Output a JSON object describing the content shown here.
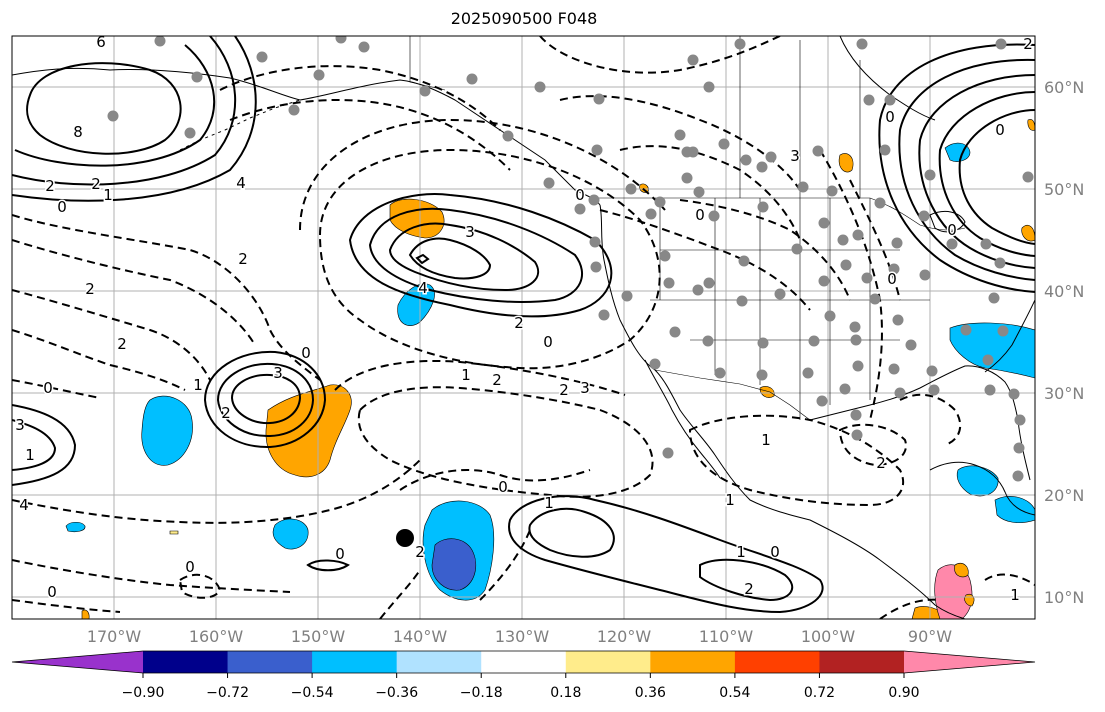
{
  "title": "2025090500 F048",
  "lat_labels": [
    "60°N",
    "50°N",
    "40°N",
    "30°N",
    "20°N",
    "10°N"
  ],
  "lon_labels": [
    "170°W",
    "160°W",
    "150°W",
    "140°W",
    "130°W",
    "120°W",
    "110°W",
    "100°W",
    "90°W"
  ],
  "colorbar": {
    "ticks": [
      "−0.90",
      "−0.72",
      "−0.54",
      "−0.36",
      "−0.18",
      "0.18",
      "0.36",
      "0.54",
      "0.72",
      "0.90"
    ],
    "colors": [
      "#9932cc",
      "#00008b",
      "#3a5fcd",
      "#00bfff",
      "#b0e2ff",
      "#ffffff",
      "#ffec8b",
      "#ffa500",
      "#ff4000",
      "#b22222",
      "#ff88aa"
    ]
  },
  "contour_labels": [
    "6",
    "8",
    "2",
    "2",
    "0",
    "1",
    "3",
    "4",
    "0",
    "2",
    "2",
    "4",
    "3",
    "1",
    "2",
    "0",
    "3",
    "2",
    "1",
    "0",
    "2",
    "0",
    "1",
    "1",
    "2",
    "2",
    "0",
    "1",
    "2",
    "0",
    "2",
    "1",
    "0",
    "2",
    "0",
    "1",
    "3",
    "4",
    "0",
    "0",
    "0",
    "0",
    "2",
    "3",
    "0",
    "0",
    "1"
  ]
}
